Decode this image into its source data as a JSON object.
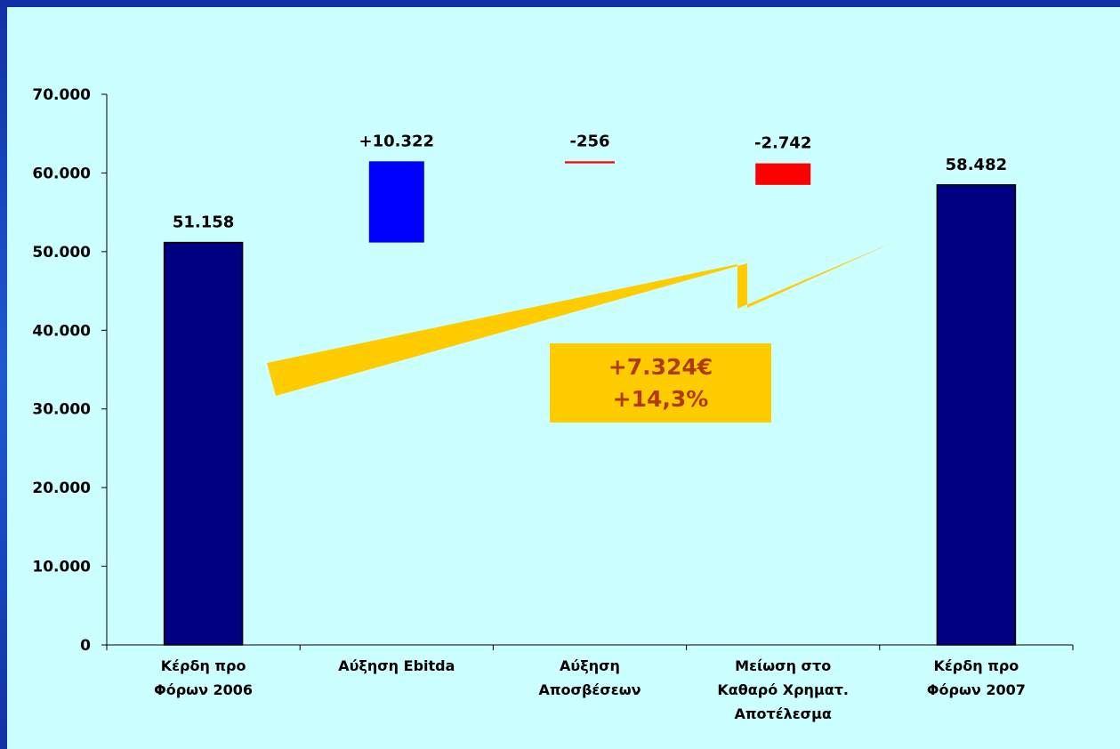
{
  "colors": {
    "background": "#ccffff",
    "frame": "#1a3fb8",
    "total_bar": "#000080",
    "increase_bar": "#0000ff",
    "decrease_bar": "#ff0000",
    "arrow": "#ffcc00",
    "annotation_text": "#b23a0a"
  },
  "chart_data": {
    "type": "waterfall",
    "ylim": [
      0,
      70000
    ],
    "yticks": [
      0,
      10000,
      20000,
      30000,
      40000,
      50000,
      60000,
      70000
    ],
    "ytick_labels": [
      "0",
      "10.000",
      "20.000",
      "30.000",
      "40.000",
      "50.000",
      "60.000",
      "70.000"
    ],
    "grid": false,
    "categories": [
      [
        "Κέρδη προ",
        "Φόρων 2006"
      ],
      [
        "Αύξηση Ebitda"
      ],
      [
        "Αύξηση",
        "Αποσβέσεων"
      ],
      [
        "Μείωση στο",
        "Καθαρό Χρηματ.",
        "Αποτέλεσμα"
      ],
      [
        "Κέρδη προ",
        "Φόρων 2007"
      ]
    ],
    "bars": [
      {
        "kind": "total",
        "start": 0,
        "end": 51158,
        "label": "51.158"
      },
      {
        "kind": "increase",
        "start": 51158,
        "end": 61480,
        "label": "+10.322"
      },
      {
        "kind": "decrease",
        "start": 61480,
        "end": 61224,
        "label": "-256"
      },
      {
        "kind": "decrease",
        "start": 61224,
        "end": 58482,
        "label": "-2.742"
      },
      {
        "kind": "total",
        "start": 0,
        "end": 58482,
        "label": "58.482"
      }
    ]
  },
  "annotation": {
    "line1": "+7.324€",
    "line2": "+14,3%"
  }
}
